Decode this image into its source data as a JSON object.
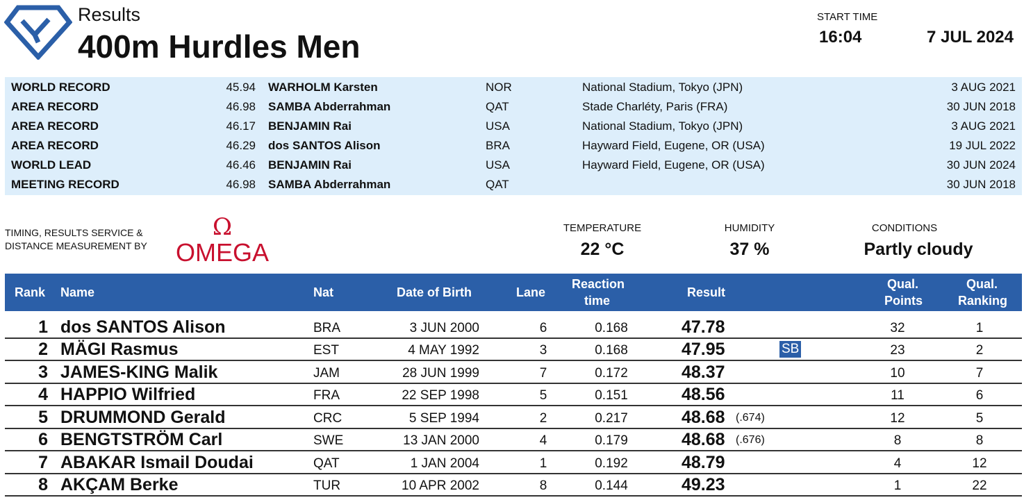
{
  "header": {
    "doc_type": "Results",
    "event_title": "400m Hurdles Men",
    "start_time_label": "START TIME",
    "start_time": "16:04",
    "date": "7 JUL 2024",
    "logo_icon": "diamond-logo-icon",
    "brand_color": "#2b5fa8"
  },
  "records": [
    {
      "type": "WORLD RECORD",
      "mark": "45.94",
      "name": "WARHOLM Karsten",
      "nat": "NOR",
      "venue": "National Stadium, Tokyo (JPN)",
      "date": "3 AUG 2021"
    },
    {
      "type": "AREA RECORD",
      "mark": "46.98",
      "name": "SAMBA Abderrahman",
      "nat": "QAT",
      "venue": "Stade Charléty, Paris (FRA)",
      "date": "30 JUN 2018"
    },
    {
      "type": "AREA RECORD",
      "mark": "46.17",
      "name": "BENJAMIN Rai",
      "nat": "USA",
      "venue": "National Stadium, Tokyo (JPN)",
      "date": "3 AUG 2021"
    },
    {
      "type": "AREA RECORD",
      "mark": "46.29",
      "name": "dos SANTOS Alison",
      "nat": "BRA",
      "venue": "Hayward Field, Eugene, OR (USA)",
      "date": "19 JUL 2022"
    },
    {
      "type": "WORLD LEAD",
      "mark": "46.46",
      "name": "BENJAMIN Rai",
      "nat": "USA",
      "venue": "Hayward Field, Eugene, OR (USA)",
      "date": "30 JUN 2024"
    },
    {
      "type": "MEETING RECORD",
      "mark": "46.98",
      "name": "SAMBA Abderrahman",
      "nat": "QAT",
      "venue": "",
      "date": "30 JUN 2018"
    }
  ],
  "timing": {
    "line1": "TIMING, RESULTS SERVICE &",
    "line2": "DISTANCE MEASUREMENT BY",
    "brand": "OMEGA",
    "brand_color": "#c8102e"
  },
  "weather": {
    "temperature_label": "TEMPERATURE",
    "temperature": "22 °C",
    "humidity_label": "HUMIDITY",
    "humidity": "37 %",
    "conditions_label": "CONDITIONS",
    "conditions": "Partly cloudy"
  },
  "columns": {
    "rank": "Rank",
    "name": "Name",
    "nat": "Nat",
    "dob": "Date of Birth",
    "lane": "Lane",
    "reaction_1": "Reaction",
    "reaction_2": "time",
    "result": "Result",
    "qual_points_1": "Qual.",
    "qual_points_2": "Points",
    "qual_ranking_1": "Qual.",
    "qual_ranking_2": "Ranking"
  },
  "results": [
    {
      "rank": "1",
      "name": "dos SANTOS Alison",
      "nat": "BRA",
      "dob": "3 JUN 2000",
      "lane": "6",
      "reaction": "0.168",
      "result": "47.78",
      "extra": "",
      "badge": "",
      "qual_points": "32",
      "qual_ranking": "1"
    },
    {
      "rank": "2",
      "name": "MÄGI Rasmus",
      "nat": "EST",
      "dob": "4 MAY 1992",
      "lane": "3",
      "reaction": "0.168",
      "result": "47.95",
      "extra": "",
      "badge": "SB",
      "qual_points": "23",
      "qual_ranking": "2"
    },
    {
      "rank": "3",
      "name": "JAMES-KING Malik",
      "nat": "JAM",
      "dob": "28 JUN 1999",
      "lane": "7",
      "reaction": "0.172",
      "result": "48.37",
      "extra": "",
      "badge": "",
      "qual_points": "10",
      "qual_ranking": "7"
    },
    {
      "rank": "4",
      "name": "HAPPIO Wilfried",
      "nat": "FRA",
      "dob": "22 SEP 1998",
      "lane": "5",
      "reaction": "0.151",
      "result": "48.56",
      "extra": "",
      "badge": "",
      "qual_points": "11",
      "qual_ranking": "6"
    },
    {
      "rank": "5",
      "name": "DRUMMOND Gerald",
      "nat": "CRC",
      "dob": "5 SEP 1994",
      "lane": "2",
      "reaction": "0.217",
      "result": "48.68",
      "extra": "(.674)",
      "badge": "",
      "qual_points": "12",
      "qual_ranking": "5"
    },
    {
      "rank": "6",
      "name": "BENGTSTRÖM Carl",
      "nat": "SWE",
      "dob": "13 JAN 2000",
      "lane": "4",
      "reaction": "0.179",
      "result": "48.68",
      "extra": "(.676)",
      "badge": "",
      "qual_points": "8",
      "qual_ranking": "8"
    },
    {
      "rank": "7",
      "name": "ABAKAR Ismail Doudai",
      "nat": "QAT",
      "dob": "1 JAN 2004",
      "lane": "1",
      "reaction": "0.192",
      "result": "48.79",
      "extra": "",
      "badge": "",
      "qual_points": "4",
      "qual_ranking": "12"
    },
    {
      "rank": "8",
      "name": "AKÇAM Berke",
      "nat": "TUR",
      "dob": "10 APR 2002",
      "lane": "8",
      "reaction": "0.144",
      "result": "49.23",
      "extra": "",
      "badge": "",
      "qual_points": "1",
      "qual_ranking": "22"
    }
  ]
}
